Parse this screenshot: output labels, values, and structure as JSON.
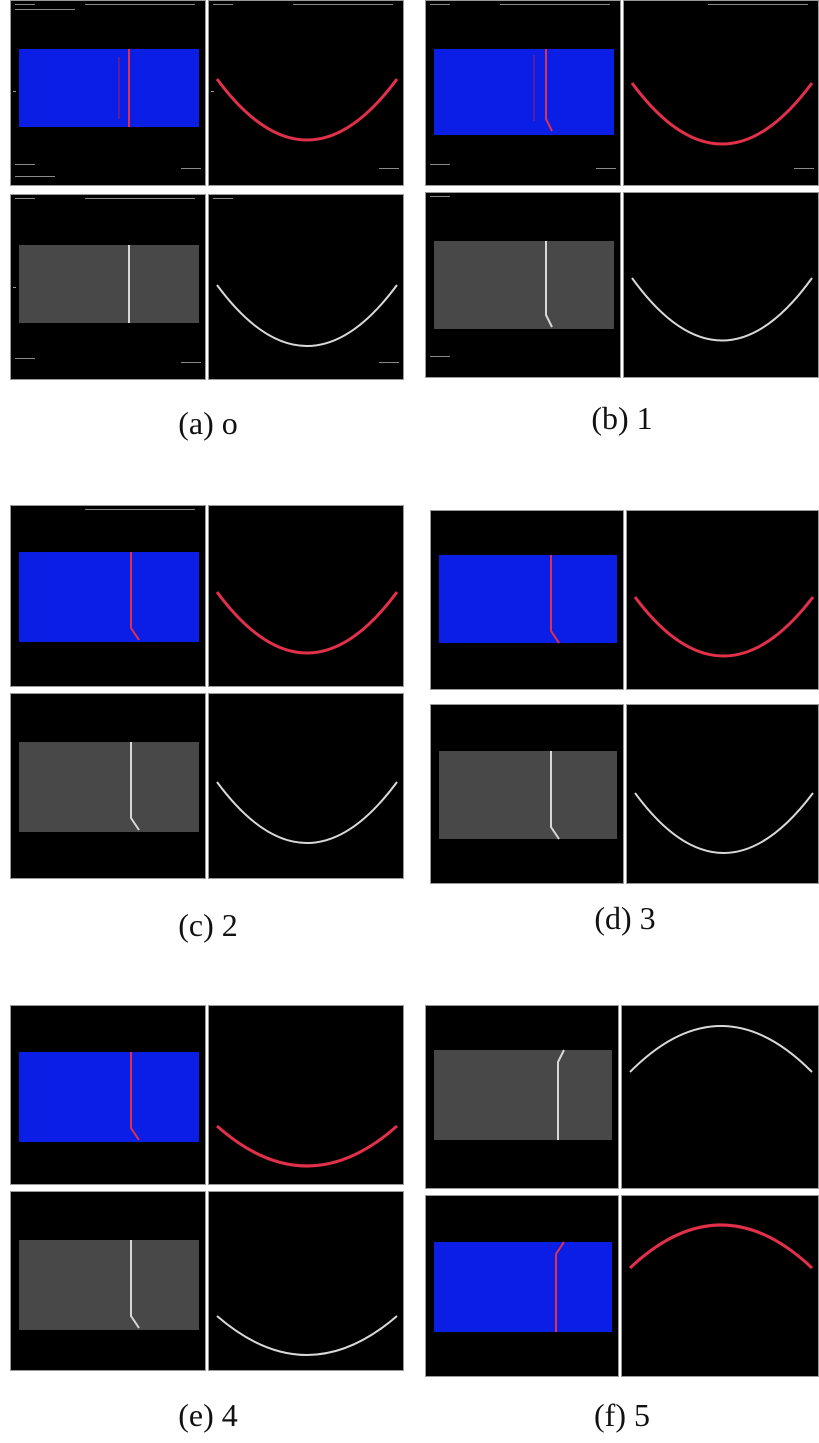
{
  "figure": {
    "subfigures": [
      {
        "caption": "(a) o",
        "layout": "standard"
      },
      {
        "caption": "(b) 1",
        "layout": "standard"
      },
      {
        "caption": "(c) 2",
        "layout": "standard"
      },
      {
        "caption": "(d) 3",
        "layout": "standard"
      },
      {
        "caption": "(e) 4",
        "layout": "standard"
      },
      {
        "caption": "(f) 5",
        "layout": "inverted"
      }
    ],
    "colors": {
      "blue_field": "#0a1ee6",
      "gray_field": "#484848",
      "red_curve": "#e0304a",
      "white_curve": "#d8d8d8",
      "panel_bg": "#000000"
    }
  }
}
